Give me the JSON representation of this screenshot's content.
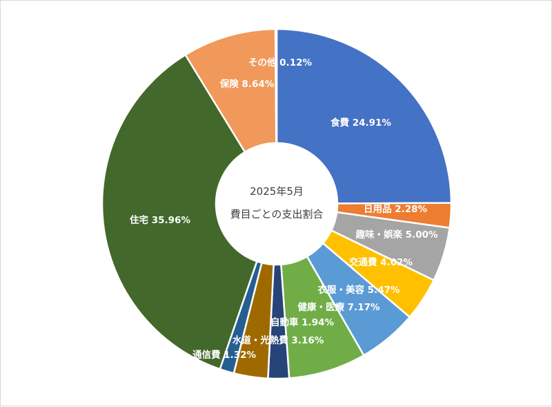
{
  "chart_data": {
    "type": "pie",
    "subtype": "doughnut",
    "title_lines": [
      "2025年5月",
      "費目ごとの支出割合"
    ],
    "slices": [
      {
        "label": "食費",
        "value": 24.91,
        "display": "食費 24.91%",
        "color": "#4472C4"
      },
      {
        "label": "日用品",
        "value": 2.28,
        "display": "日用品 2.28%",
        "color": "#ED7D31"
      },
      {
        "label": "趣味・娯楽",
        "value": 5.0,
        "display": "趣味・娯楽 5.00%",
        "color": "#A5A5A5"
      },
      {
        "label": "交通費",
        "value": 4.02,
        "display": "交通費 4.02%",
        "color": "#FFC000"
      },
      {
        "label": "衣服・美容",
        "value": 5.47,
        "display": "衣服・美容 5.47%",
        "color": "#5B9BD5"
      },
      {
        "label": "健康・医療",
        "value": 7.17,
        "display": "健康・医療 7.17%",
        "color": "#70AD47"
      },
      {
        "label": "自動車",
        "value": 1.94,
        "display": "自動車 1.94%",
        "color": "#264478"
      },
      {
        "label": "水道・光熱費",
        "value": 3.16,
        "display": "水道・光熱費 3.16%",
        "color": "#9E6A00"
      },
      {
        "label": "通信費",
        "value": 1.32,
        "display": "通信費 1.32%",
        "color": "#255E91"
      },
      {
        "label": "住宅",
        "value": 35.96,
        "display": "住宅 35.96%",
        "color": "#43682B"
      },
      {
        "label": "保険",
        "value": 8.64,
        "display": "保険 8.64%",
        "color": "#F0995A"
      },
      {
        "label": "その他",
        "value": 0.12,
        "display": "その他 0.12%",
        "color": "#9E480E"
      }
    ]
  }
}
